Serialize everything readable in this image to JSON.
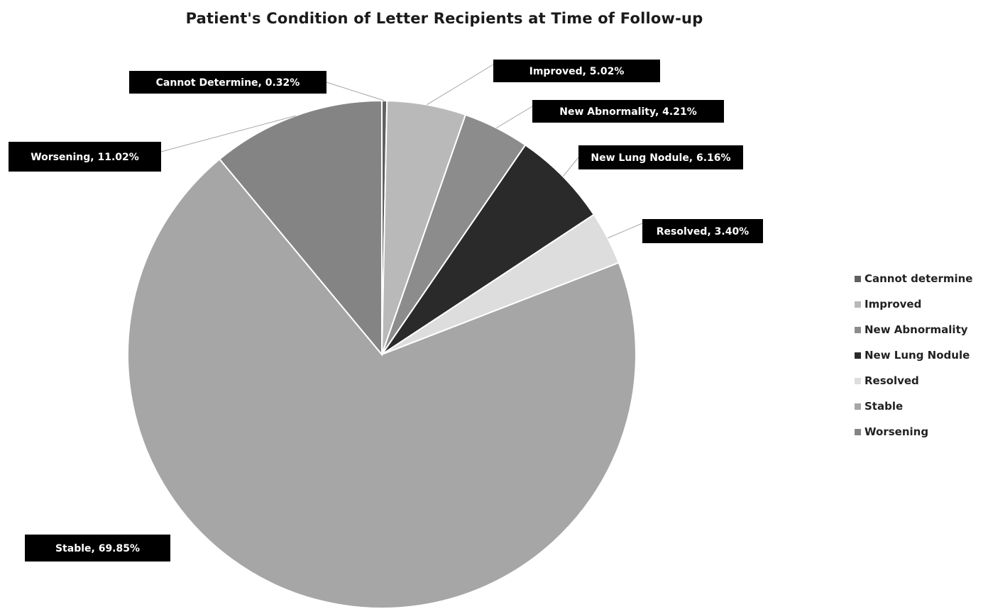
{
  "chart_data": {
    "type": "pie",
    "title": "Patient's Condition of Letter Recipients at Time of Follow-up",
    "slices": [
      {
        "label": "Cannot Determine, 0.32%",
        "legend": "Cannot determine",
        "value": 0.32,
        "color": "#606060"
      },
      {
        "label": "Improved, 5.02%",
        "legend": "Improved",
        "value": 5.02,
        "color": "#b9b9b9"
      },
      {
        "label": "New Abnormality, 4.21%",
        "legend": "New Abnormality",
        "value": 4.21,
        "color": "#8c8c8c"
      },
      {
        "label": "New Lung Nodule, 6.16%",
        "legend": "New Lung Nodule",
        "value": 6.16,
        "color": "#2a2a2a"
      },
      {
        "label": "Resolved, 3.40%",
        "legend": "Resolved",
        "value": 3.4,
        "color": "#dddddd"
      },
      {
        "label": "Stable, 69.85%",
        "legend": "Stable",
        "value": 69.85,
        "color": "#a6a6a6"
      },
      {
        "label": "Worsening, 11.02%",
        "legend": "Worsening",
        "value": 11.02,
        "color": "#848484"
      }
    ],
    "legend_position": "right"
  }
}
